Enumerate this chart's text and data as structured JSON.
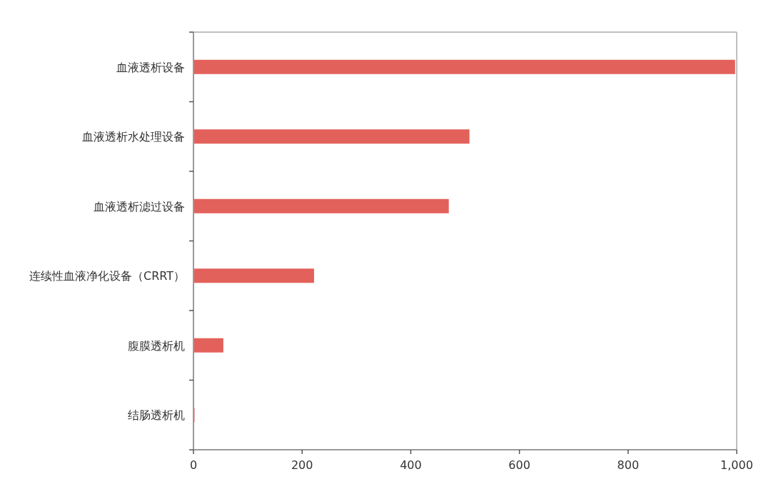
{
  "chart_data": {
    "type": "bar",
    "orientation": "horizontal",
    "categories": [
      "血液透析设备",
      "血液透析水处理设备",
      "血液透析滤过设备",
      "连续性血液净化设备（CRRT）",
      "腹膜透析机",
      "结肠透析机"
    ],
    "values": [
      997,
      508,
      470,
      222,
      55,
      2
    ],
    "color": "#e3615b",
    "xlim": [
      0,
      1000
    ],
    "xticks": [
      0,
      200,
      400,
      600,
      800,
      {
        "value": 1000,
        "label": "1,000"
      }
    ],
    "grid": false,
    "legend": false
  }
}
